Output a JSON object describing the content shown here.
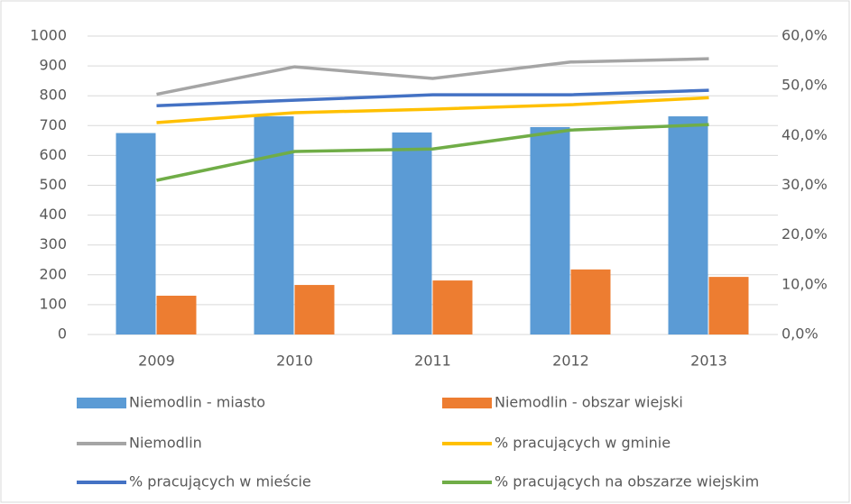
{
  "chart_data": {
    "type": "bar",
    "categories": [
      "2009",
      "2010",
      "2011",
      "2012",
      "2013"
    ],
    "ylim": [
      0,
      1000
    ],
    "yticks": [
      0,
      100,
      200,
      300,
      400,
      500,
      600,
      700,
      800,
      900,
      1000
    ],
    "y2lim": [
      0,
      60
    ],
    "y2ticks": [
      {
        "value": 0,
        "label": "0,0%"
      },
      {
        "value": 10,
        "label": "10,0%"
      },
      {
        "value": 20,
        "label": "20,0%"
      },
      {
        "value": 30,
        "label": "30,0%"
      },
      {
        "value": 40,
        "label": "40,0%"
      },
      {
        "value": 50,
        "label": "50,0%"
      },
      {
        "value": 60,
        "label": "60,0%"
      }
    ],
    "grid": true,
    "legend": "bottom",
    "series": [
      {
        "name": "Niemodlin - miasto",
        "type": "bar",
        "color": "#5b9bd5",
        "values": [
          675,
          731,
          677,
          695,
          731
        ]
      },
      {
        "name": "Niemodlin - obszar wiejski",
        "type": "bar",
        "color": "#ed7d31",
        "values": [
          130,
          166,
          181,
          218,
          193
        ]
      },
      {
        "name": "Niemodlin",
        "type": "line",
        "color": "#a5a5a5",
        "values": [
          805,
          897,
          858,
          913,
          924
        ]
      },
      {
        "name": "% pracujących w gminie",
        "type": "line",
        "axis": "y2",
        "color": "#ffc000",
        "values": [
          42.6,
          44.6,
          45.3,
          46.2,
          47.6
        ]
      },
      {
        "name": "% pracujących w mieście",
        "type": "line",
        "axis": "y2",
        "color": "#4472c4",
        "values": [
          46.0,
          47.1,
          48.2,
          48.2,
          49.1
        ]
      },
      {
        "name": "% pracujących na obszarze wiejskim",
        "type": "line",
        "axis": "y2",
        "color": "#70ad47",
        "values": [
          31.0,
          36.8,
          37.3,
          41.1,
          42.2
        ]
      }
    ]
  }
}
